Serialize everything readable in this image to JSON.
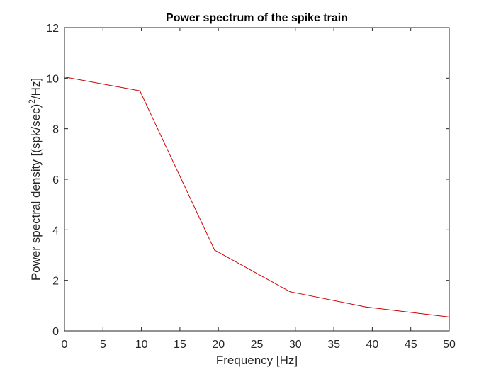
{
  "chart_data": {
    "type": "line",
    "title": "Power spectrum of the spike train",
    "xlabel": "Frequency [Hz]",
    "ylabel_parts": {
      "before": "Power spectral density [(spk/sec)",
      "superscript": "2",
      "after": "/Hz]"
    },
    "xlim": [
      0,
      50
    ],
    "ylim": [
      0,
      12
    ],
    "xticks": [
      0,
      5,
      10,
      15,
      20,
      25,
      30,
      35,
      40,
      45,
      50
    ],
    "yticks": [
      0,
      2,
      4,
      6,
      8,
      10,
      12
    ],
    "grid": false,
    "series": [
      {
        "x": [
          0,
          9.8,
          19.5,
          29.3,
          39.1,
          50
        ],
        "y": [
          10.05,
          9.5,
          3.2,
          1.55,
          0.95,
          0.55
        ],
        "color": "#cc0000"
      }
    ]
  }
}
